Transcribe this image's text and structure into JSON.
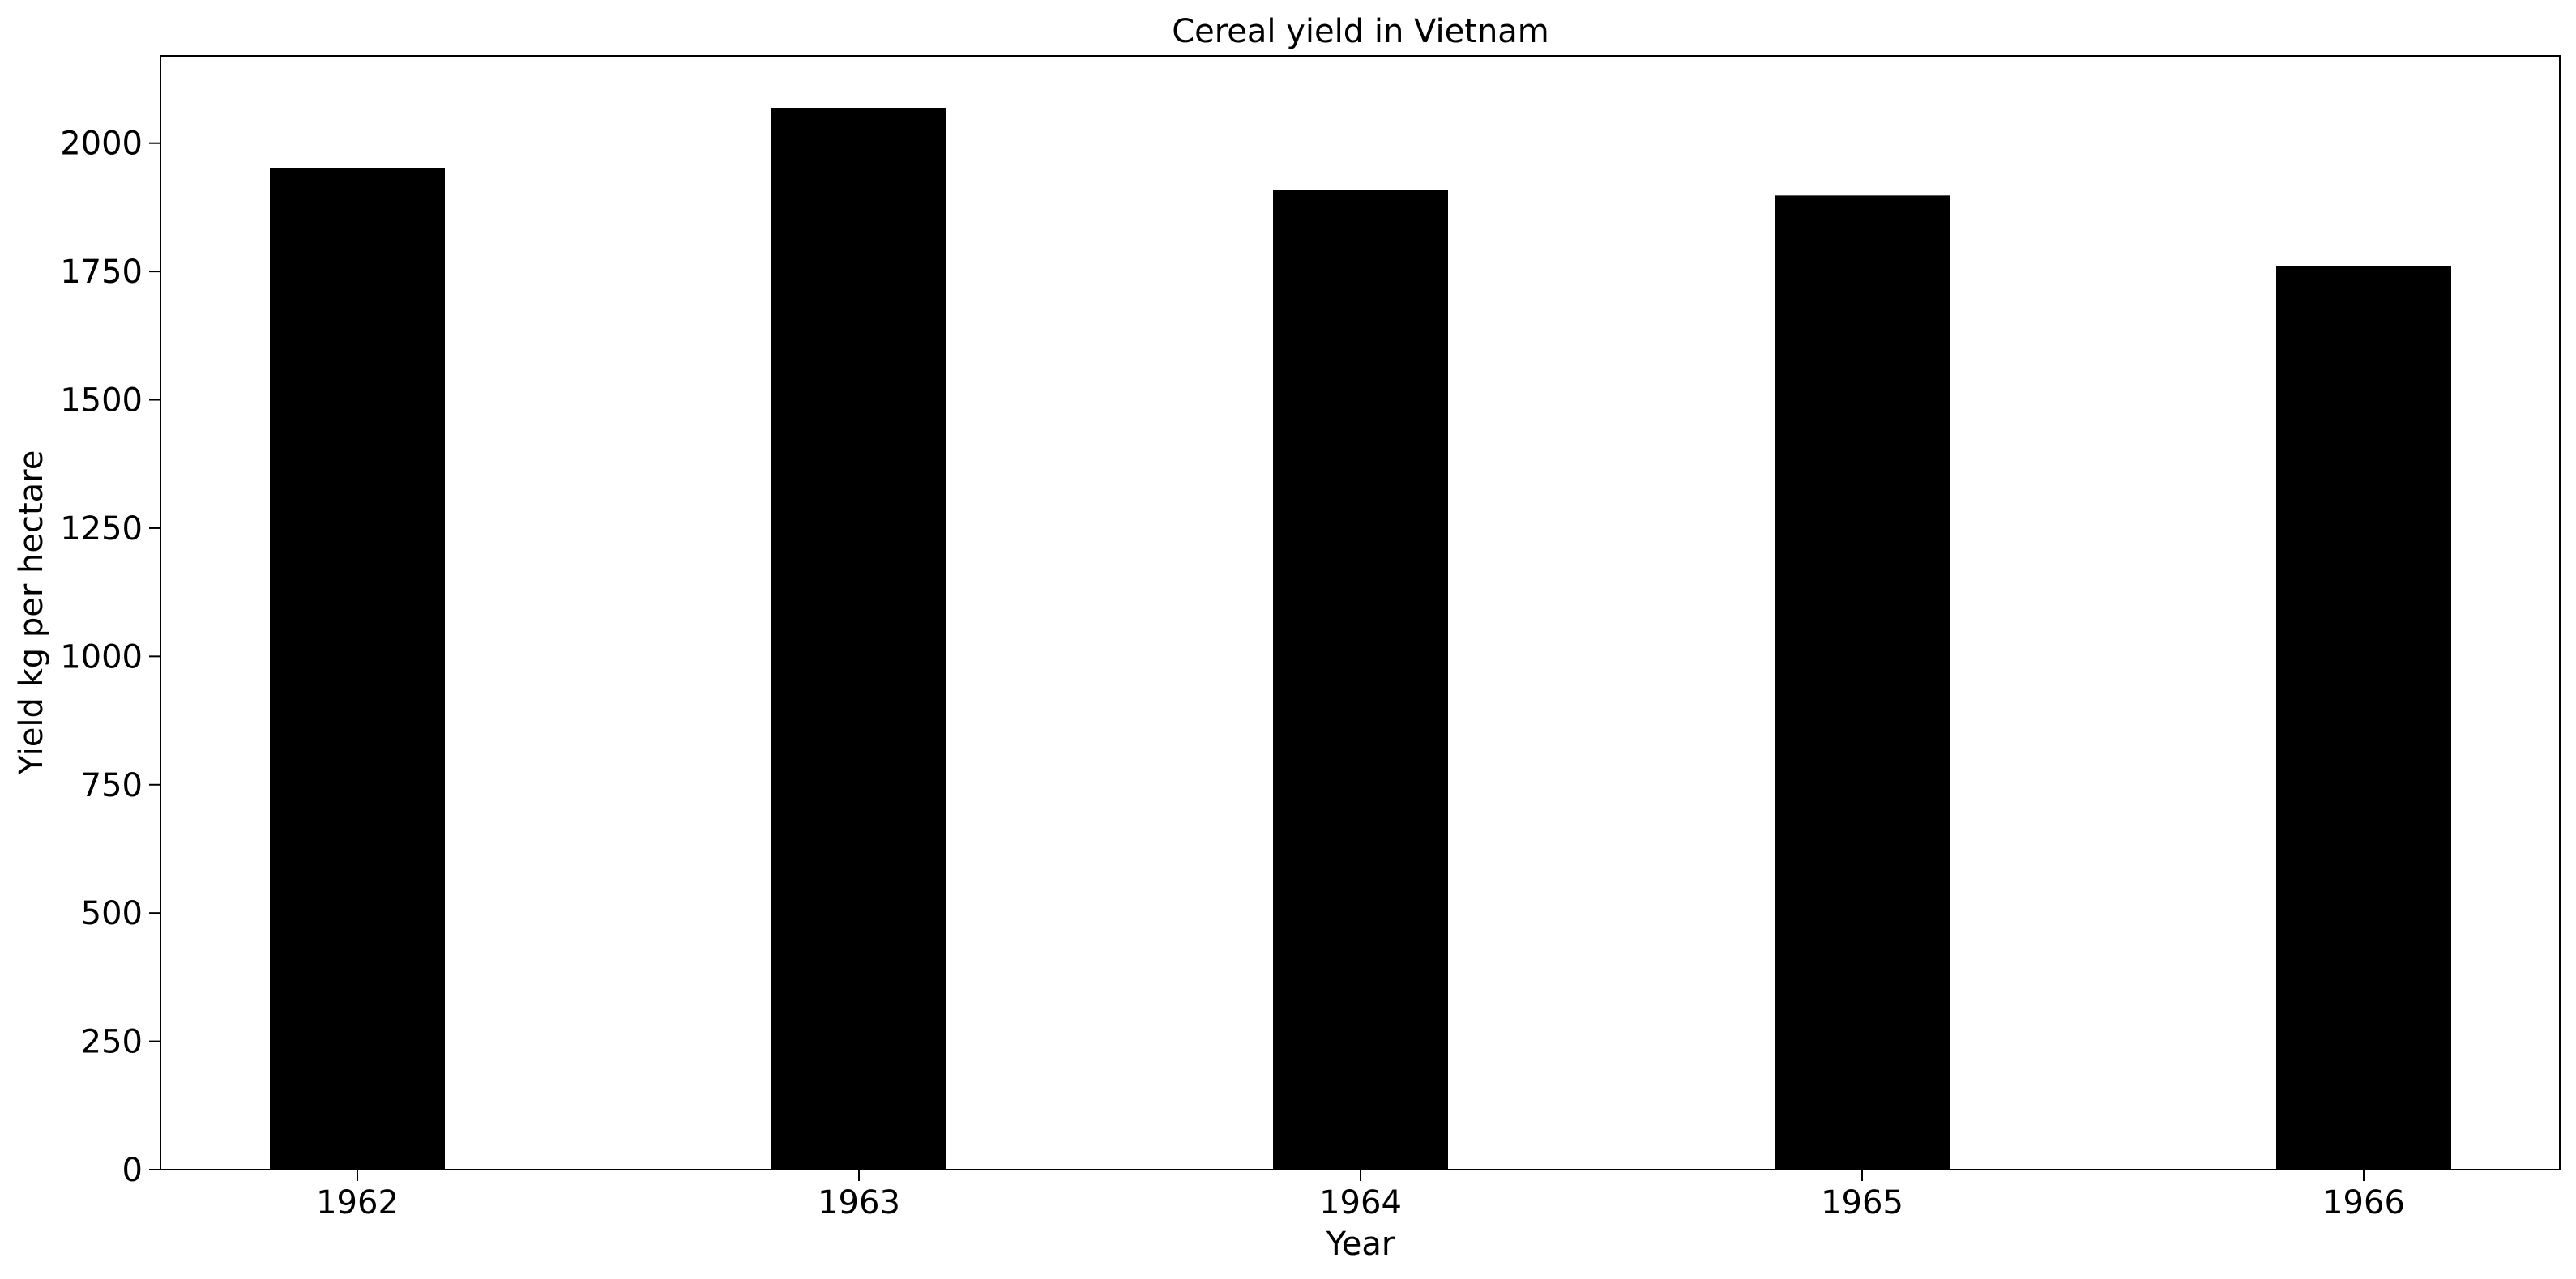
{
  "chart_data": {
    "type": "bar",
    "title": "Cereal yield in Vietnam",
    "xlabel": "Year",
    "ylabel": "Yield kg per hectare",
    "categories": [
      "1962",
      "1963",
      "1964",
      "1965",
      "1966"
    ],
    "values": [
      1952,
      2069,
      1909,
      1898,
      1761
    ],
    "ylim": [
      0,
      2170
    ],
    "yticks": [
      0,
      250,
      500,
      750,
      1000,
      1250,
      1500,
      1750,
      2000
    ],
    "grid": false,
    "legend": "none",
    "bar_color": "#000000",
    "axis_color": "#000000",
    "background_color": "#ffffff"
  }
}
